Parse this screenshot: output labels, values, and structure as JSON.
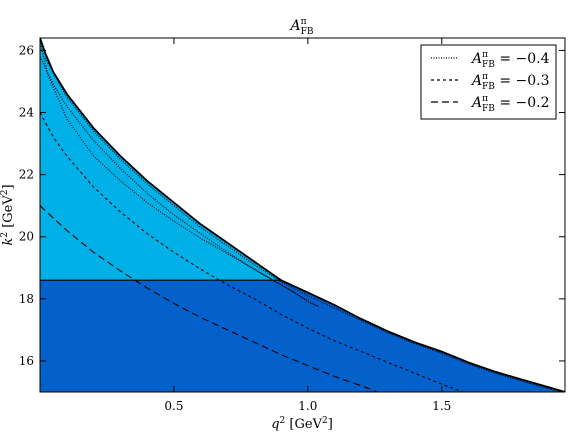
{
  "chart_data": {
    "type": "area",
    "title": {
      "main": "A",
      "sup": "π",
      "sub": "FB"
    },
    "xlabel": {
      "main": "q",
      "sup": "2",
      "unit": " [GeV",
      "unit_sup": "2",
      "unit_end": "]"
    },
    "ylabel": {
      "main": "k",
      "sup": "2",
      "unit": " [GeV",
      "unit_sup": "2",
      "unit_end": "]"
    },
    "xlim": [
      0.0,
      1.96
    ],
    "ylim": [
      15.0,
      26.4
    ],
    "xticks": [
      0.5,
      1.0,
      1.5
    ],
    "xtick_labels": [
      "0.5",
      "1.0",
      "1.5"
    ],
    "yticks": [
      16,
      18,
      20,
      22,
      24,
      26
    ],
    "ytick_labels": [
      "16",
      "18",
      "20",
      "22",
      "24",
      "26"
    ],
    "grid": false,
    "legend_position": "top-right",
    "colors": {
      "upper_region": "#00b0e6",
      "lower_region": "#0461cc",
      "boundary": "#000000"
    },
    "threshold_k2": 18.6,
    "boundary": {
      "x": [
        0.0,
        0.02,
        0.05,
        0.1,
        0.2,
        0.3,
        0.4,
        0.5,
        0.6,
        0.7,
        0.8,
        0.9,
        1.0,
        1.1,
        1.2,
        1.3,
        1.4,
        1.5,
        1.6,
        1.7,
        1.8,
        1.9,
        1.96
      ],
      "y": [
        26.4,
        25.9,
        25.3,
        24.6,
        23.5,
        22.6,
        21.8,
        21.1,
        20.4,
        19.8,
        19.2,
        18.6,
        18.2,
        17.8,
        17.35,
        16.95,
        16.6,
        16.3,
        15.95,
        15.65,
        15.4,
        15.15,
        15.0
      ]
    },
    "legend": [
      {
        "main": "A",
        "sup": "π",
        "sub": "FB",
        "value": " = −0.4",
        "dash": "1,1.5"
      },
      {
        "main": "A",
        "sup": "π",
        "sub": "FB",
        "value": " = −0.3",
        "dash": "3,3"
      },
      {
        "main": "A",
        "sup": "π",
        "sub": "FB",
        "value": " = −0.2",
        "dash": "7,4"
      }
    ],
    "series": [
      {
        "dash": "1,1.5",
        "x": [
          0.0,
          0.05,
          0.1,
          0.2,
          0.3,
          0.4,
          0.5,
          0.6,
          0.7,
          0.8,
          0.9,
          0.95,
          1.0,
          1.04,
          1.0,
          0.9,
          0.8,
          0.7,
          0.6,
          0.5,
          0.4,
          0.3,
          0.2,
          0.1,
          0.03,
          0.0
        ],
        "y": [
          25.8,
          24.9,
          24.2,
          23.1,
          22.2,
          21.4,
          20.7,
          20.1,
          19.5,
          18.95,
          18.45,
          18.2,
          17.9,
          17.75,
          17.95,
          18.45,
          18.95,
          19.45,
          19.95,
          20.5,
          21.1,
          21.8,
          22.6,
          23.8,
          25.2,
          26.3
        ]
      },
      {
        "dash": "3,3",
        "x": [
          0.0,
          0.05,
          0.1,
          0.2,
          0.3,
          0.4,
          0.5,
          0.6,
          0.7,
          0.8,
          0.9,
          1.0,
          1.1,
          1.2,
          1.3,
          1.4,
          1.5,
          1.58
        ],
        "y": [
          24.0,
          23.2,
          22.6,
          21.6,
          20.8,
          20.1,
          19.5,
          18.95,
          18.45,
          18.0,
          17.5,
          17.05,
          16.65,
          16.3,
          15.95,
          15.6,
          15.25,
          15.0
        ]
      },
      {
        "dash": "7,4",
        "x": [
          0.0,
          0.05,
          0.1,
          0.2,
          0.3,
          0.4,
          0.5,
          0.6,
          0.7,
          0.8,
          0.9,
          1.0,
          1.1,
          1.2,
          1.26
        ],
        "y": [
          21.0,
          20.6,
          20.2,
          19.5,
          18.9,
          18.35,
          17.85,
          17.4,
          17.0,
          16.6,
          16.2,
          15.85,
          15.5,
          15.2,
          15.0
        ]
      },
      {
        "dash": "1,1.5",
        "x": [
          0.02,
          0.1,
          0.2,
          0.3,
          0.4,
          0.5,
          0.6,
          0.7,
          0.8,
          0.9,
          1.0,
          1.1,
          1.2,
          1.3,
          1.4,
          1.5,
          1.6,
          1.7,
          1.8,
          1.9,
          1.96
        ],
        "y": [
          25.75,
          24.5,
          23.4,
          22.5,
          21.7,
          21.0,
          20.3,
          19.7,
          19.1,
          18.55,
          18.1,
          17.7,
          17.3,
          16.9,
          16.55,
          16.25,
          15.9,
          15.6,
          15.35,
          15.1,
          15.0
        ]
      }
    ]
  }
}
